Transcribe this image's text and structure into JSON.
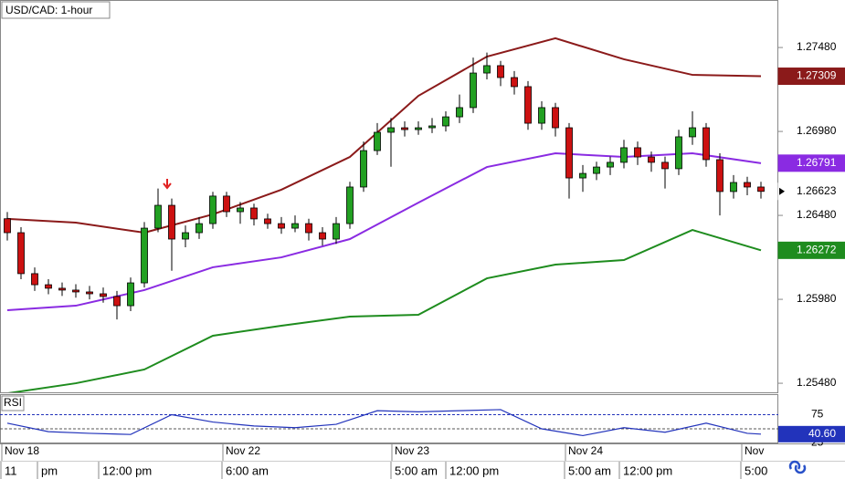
{
  "chart_data": {
    "type": "candlestick",
    "title": "USD/CAD: 1-hour",
    "ylim": [
      1.25426,
      1.27763
    ],
    "yticks": [
      {
        "value": 1.2748,
        "label": "1.27480"
      },
      {
        "value": 1.2698,
        "label": "1.26980"
      },
      {
        "value": 1.2648,
        "label": "1.26480"
      },
      {
        "value": 1.2598,
        "label": "1.25980"
      },
      {
        "value": 1.2548,
        "label": "1.25480"
      }
    ],
    "up_color": "#22a022",
    "down_color": "#cc1111",
    "candles": [
      [
        1.2646,
        1.265,
        1.2633,
        1.26377
      ],
      [
        1.26377,
        1.2641,
        1.261,
        1.26133
      ],
      [
        1.26133,
        1.2617,
        1.2603,
        1.26067
      ],
      [
        1.26067,
        1.261,
        1.2601,
        1.26046
      ],
      [
        1.26046,
        1.2608,
        1.26,
        1.26035
      ],
      [
        1.26035,
        1.2607,
        1.2599,
        1.26024
      ],
      [
        1.26024,
        1.2606,
        1.2598,
        1.26013
      ],
      [
        1.26013,
        1.2605,
        1.2596,
        1.25997
      ],
      [
        1.25997,
        1.2603,
        1.2586,
        1.25942
      ],
      [
        1.25942,
        1.2611,
        1.2591,
        1.26078
      ],
      [
        1.26078,
        1.2644,
        1.2605,
        1.26404
      ],
      [
        1.26404,
        1.2664,
        1.2638,
        1.2654
      ],
      [
        1.2654,
        1.2658,
        1.2615,
        1.26339
      ],
      [
        1.26339,
        1.2642,
        1.2629,
        1.26377
      ],
      [
        1.26377,
        1.2647,
        1.2634,
        1.26431
      ],
      [
        1.26431,
        1.2662,
        1.264,
        1.26595
      ],
      [
        1.26595,
        1.2662,
        1.2647,
        1.26502
      ],
      [
        1.26502,
        1.2656,
        1.2643,
        1.26524
      ],
      [
        1.26524,
        1.2655,
        1.2642,
        1.26459
      ],
      [
        1.26459,
        1.2649,
        1.264,
        1.26431
      ],
      [
        1.26431,
        1.2647,
        1.2637,
        1.26404
      ],
      [
        1.26404,
        1.2648,
        1.2638,
        1.26431
      ],
      [
        1.26431,
        1.2646,
        1.2633,
        1.26377
      ],
      [
        1.26377,
        1.2641,
        1.263,
        1.26339
      ],
      [
        1.26339,
        1.2647,
        1.2631,
        1.26431
      ],
      [
        1.26431,
        1.2668,
        1.264,
        1.26649
      ],
      [
        1.26649,
        1.2692,
        1.2662,
        1.26866
      ],
      [
        1.26866,
        1.2703,
        1.2684,
        1.26975
      ],
      [
        1.26975,
        1.2706,
        1.2677,
        1.27002
      ],
      [
        1.27002,
        1.2704,
        1.2695,
        1.26991
      ],
      [
        1.26991,
        1.2704,
        1.2696,
        1.27002
      ],
      [
        1.27002,
        1.2706,
        1.2697,
        1.27013
      ],
      [
        1.27013,
        1.271,
        1.2698,
        1.27067
      ],
      [
        1.27067,
        1.272,
        1.2703,
        1.27122
      ],
      [
        1.27122,
        1.2742,
        1.2709,
        1.27328
      ],
      [
        1.27328,
        1.2745,
        1.2729,
        1.27372
      ],
      [
        1.27372,
        1.274,
        1.2725,
        1.27301
      ],
      [
        1.27301,
        1.2734,
        1.272,
        1.27247
      ],
      [
        1.27247,
        1.2728,
        1.2699,
        1.27029
      ],
      [
        1.27029,
        1.2716,
        1.2699,
        1.27122
      ],
      [
        1.27122,
        1.2715,
        1.2695,
        1.27002
      ],
      [
        1.27002,
        1.2703,
        1.2658,
        1.26703
      ],
      [
        1.26703,
        1.2678,
        1.2662,
        1.2673
      ],
      [
        1.2673,
        1.268,
        1.2669,
        1.26768
      ],
      [
        1.26768,
        1.2683,
        1.2672,
        1.26796
      ],
      [
        1.26796,
        1.2693,
        1.2676,
        1.26883
      ],
      [
        1.26883,
        1.2692,
        1.2678,
        1.26828
      ],
      [
        1.26828,
        1.2686,
        1.2674,
        1.26796
      ],
      [
        1.26796,
        1.2683,
        1.2664,
        1.26758
      ],
      [
        1.26758,
        1.2699,
        1.2672,
        1.26948
      ],
      [
        1.26948,
        1.271,
        1.269,
        1.27002
      ],
      [
        1.27002,
        1.2703,
        1.2677,
        1.26812
      ],
      [
        1.26812,
        1.2685,
        1.2648,
        1.26622
      ],
      [
        1.26622,
        1.2672,
        1.2658,
        1.26676
      ],
      [
        1.26676,
        1.2671,
        1.266,
        1.26649
      ],
      [
        1.26649,
        1.2668,
        1.2658,
        1.26623
      ]
    ],
    "series": [
      {
        "color": "#8b1a1a",
        "x": [
          0,
          5,
          10,
          15,
          20,
          25,
          30,
          35,
          40,
          45,
          50,
          55
        ],
        "values": [
          1.26459,
          1.26437,
          1.26377,
          1.26486,
          1.26633,
          1.26828,
          1.27192,
          1.27426,
          1.27535,
          1.2741,
          1.27317,
          1.27309
        ]
      },
      {
        "color": "#8a2be2",
        "x": [
          0,
          5,
          10,
          15,
          20,
          25,
          30,
          35,
          40,
          45,
          50,
          55
        ],
        "values": [
          1.25915,
          1.25942,
          1.26035,
          1.26171,
          1.2623,
          1.26339,
          1.26556,
          1.26768,
          1.2685,
          1.26828,
          1.2685,
          1.26791
        ]
      },
      {
        "color": "#1e8c1e",
        "x": [
          0,
          5,
          10,
          15,
          20,
          25,
          30,
          35,
          40,
          45,
          50,
          55
        ],
        "values": [
          1.2542,
          1.2548,
          1.25562,
          1.25763,
          1.25823,
          1.25877,
          1.25888,
          1.26105,
          1.26187,
          1.26214,
          1.26393,
          1.26272
        ]
      }
    ],
    "price_tags": [
      {
        "value": 1.27309,
        "label": "1.27309",
        "color": "#8b1a1a"
      },
      {
        "value": 1.26791,
        "label": "1.26791",
        "color": "#8a2be2"
      },
      {
        "value": 1.26623,
        "label": "1.26623",
        "color": "#ffffff"
      },
      {
        "value": 1.26272,
        "label": "1.26272",
        "color": "#1e8c1e"
      }
    ],
    "rsi": {
      "title": "RSI",
      "color": "#2233bb",
      "ylim": [
        0,
        100
      ],
      "yticks": [
        75,
        25
      ],
      "midline": 50,
      "x": [
        0,
        3,
        6,
        9,
        12,
        15,
        18,
        21,
        24,
        27,
        30,
        33,
        36,
        39,
        42,
        45,
        48,
        51,
        54,
        55
      ],
      "values": [
        60,
        45,
        42,
        40,
        75,
        62,
        55,
        52,
        58,
        82,
        80,
        82,
        84,
        50,
        38,
        52,
        44,
        60,
        42,
        40.6
      ],
      "tag": {
        "value": 40.6,
        "label": "40.60"
      }
    },
    "date_labels": [
      "Nov 18",
      "Nov 22",
      "Nov 23",
      "Nov 24",
      "Nov"
    ],
    "time_labels": [
      "11",
      "pm",
      "12:00 pm",
      "6:00 am",
      "5:00 am",
      "12:00 pm",
      "5:00 am",
      "12:00 pm",
      "5:00"
    ]
  }
}
